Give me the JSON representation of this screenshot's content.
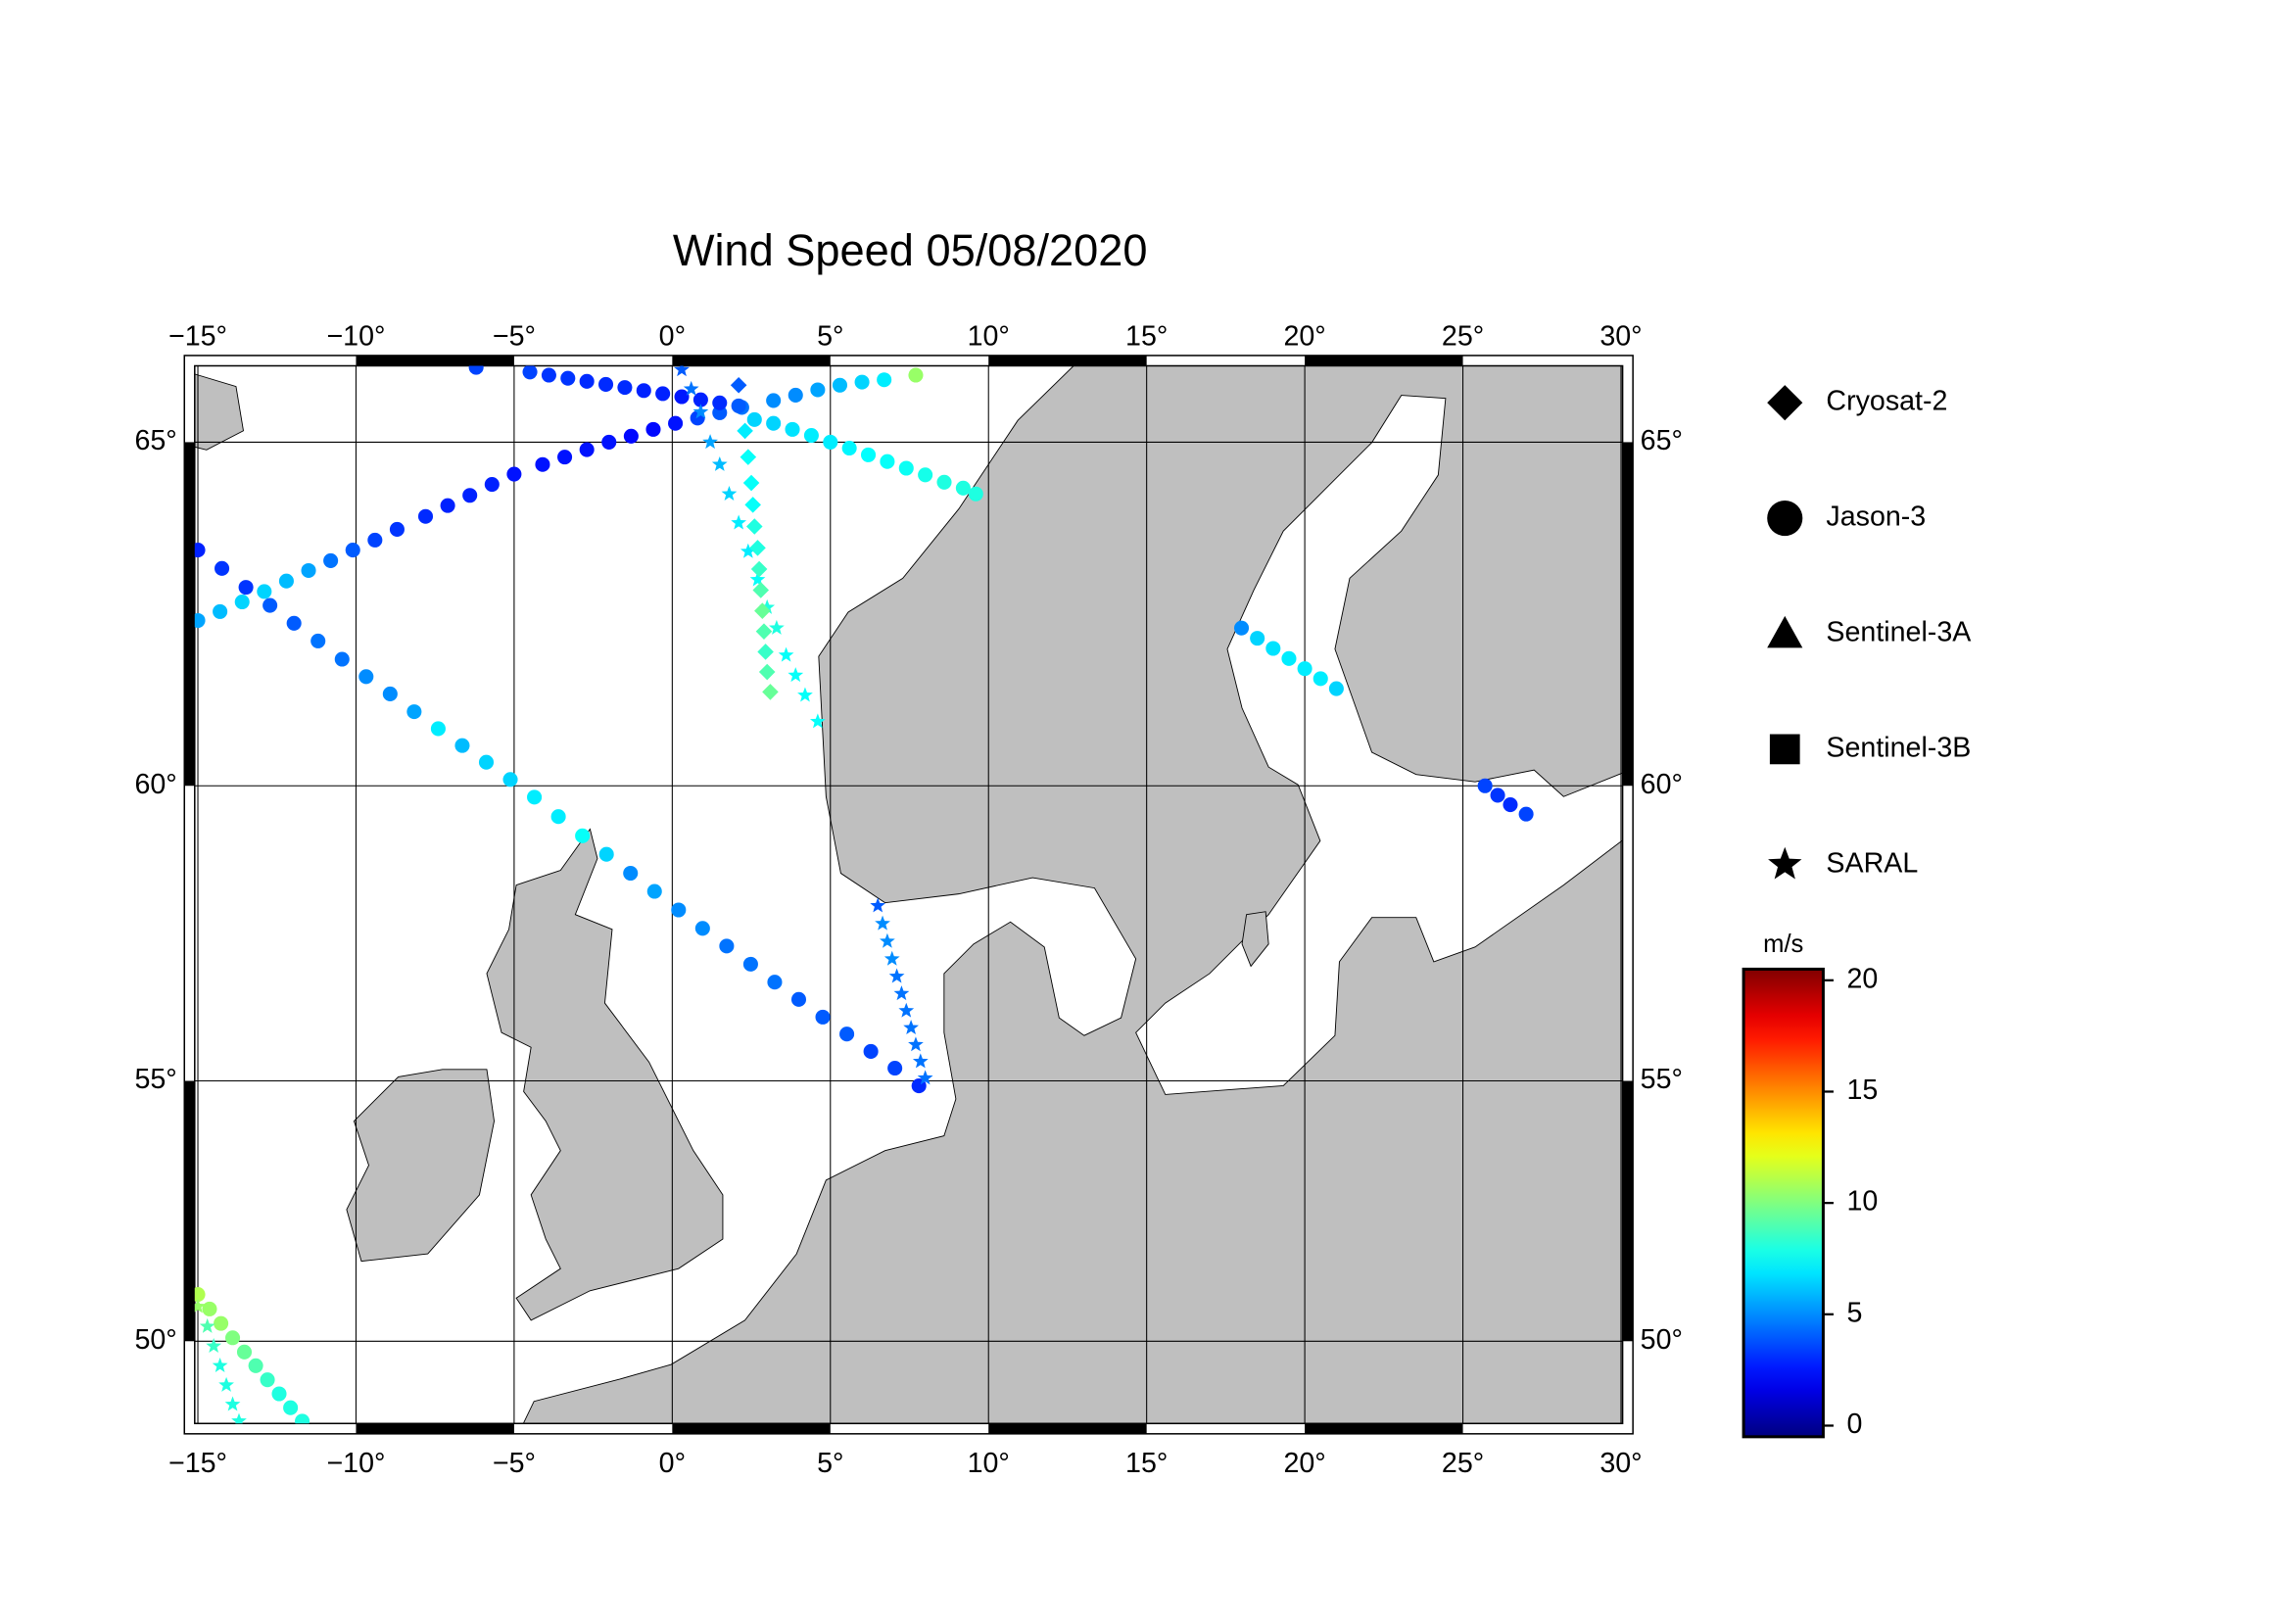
{
  "chart_data": {
    "type": "map",
    "title": "Wind Speed 05/08/2020",
    "projection": "mercator",
    "xlim": [
      -15.1,
      30.05
    ],
    "ylim": [
      48.3,
      66.0
    ],
    "xticks": [
      {
        "value": -15,
        "label": "−15°"
      },
      {
        "value": -10,
        "label": "−10°"
      },
      {
        "value": -5,
        "label": "−5°"
      },
      {
        "value": 0,
        "label": "0°"
      },
      {
        "value": 5,
        "label": "5°"
      },
      {
        "value": 10,
        "label": "10°"
      },
      {
        "value": 15,
        "label": "15°"
      },
      {
        "value": 20,
        "label": "20°"
      },
      {
        "value": 25,
        "label": "25°"
      },
      {
        "value": 30,
        "label": "30°"
      }
    ],
    "yticks": [
      {
        "value": 50,
        "label": "50°"
      },
      {
        "value": 55,
        "label": "55°"
      },
      {
        "value": 60,
        "label": "60°"
      },
      {
        "value": 65,
        "label": "65°"
      }
    ],
    "grid": true,
    "land_color": "#bfbfbf",
    "legend": [
      {
        "label": "Cryosat-2",
        "marker": "diamond"
      },
      {
        "label": "Jason-3",
        "marker": "circle"
      },
      {
        "label": "Sentinel-3A",
        "marker": "triangle"
      },
      {
        "label": "Sentinel-3B",
        "marker": "square"
      },
      {
        "label": "SARAL",
        "marker": "star"
      }
    ],
    "colorbar": {
      "label": "m/s",
      "colormap": "jet",
      "lim": [
        -0.5,
        20.5
      ],
      "ticks": [
        0,
        5,
        10,
        15,
        20
      ]
    },
    "tracks": [
      {
        "marker": "circle",
        "lon": [
          -15,
          -14.24,
          -13.48,
          -12.72,
          -11.96,
          -11.2,
          -10.44,
          -9.68,
          -8.92,
          -8.16,
          -7.4,
          -6.64,
          -5.88,
          -5.12,
          -4.36,
          -3.6,
          -2.84,
          -2.08,
          -1.32,
          -0.56,
          0.2,
          0.96,
          1.72,
          2.48,
          3.24,
          4,
          4.76,
          5.52,
          6.28,
          7.04,
          7.8
        ],
        "lat": [
          63.52,
          63.26,
          62.99,
          62.73,
          62.47,
          62.21,
          61.94,
          61.68,
          61.42,
          61.15,
          60.89,
          60.63,
          60.37,
          60.1,
          59.82,
          59.51,
          59.2,
          58.9,
          58.59,
          58.29,
          57.98,
          57.67,
          57.37,
          57.06,
          56.75,
          56.45,
          56.14,
          55.84,
          55.53,
          55.23,
          54.91
        ],
        "values": [
          2.8,
          3.2,
          3.2,
          4,
          4,
          4.5,
          4.5,
          5,
          5,
          5.5,
          7,
          6,
          6.5,
          6.5,
          7,
          7,
          7.5,
          6.5,
          5,
          5.5,
          5,
          5,
          4.5,
          4.5,
          4.5,
          4,
          4,
          4,
          3.5,
          3.5,
          3
        ]
      },
      {
        "marker": "circle",
        "lon": [
          -15,
          -14.3,
          -13.6,
          -12.9,
          -12.2,
          -11.5,
          -10.8,
          -10.1,
          -9.4,
          -8.7,
          -7.8,
          -7.1,
          -6.4,
          -5.7,
          -5,
          -4.1,
          -3.4,
          -2.7,
          -2,
          -1.3,
          -0.6,
          0.1,
          0.8,
          1.5,
          2.2,
          3.2,
          3.9,
          4.6,
          5.3,
          6,
          6.7,
          7.7
        ],
        "lat": [
          62.51,
          62.64,
          62.78,
          62.93,
          63.08,
          63.23,
          63.37,
          63.52,
          63.66,
          63.81,
          63.99,
          64.14,
          64.28,
          64.43,
          64.57,
          64.7,
          64.8,
          64.9,
          65,
          65.08,
          65.17,
          65.25,
          65.32,
          65.39,
          65.46,
          65.55,
          65.62,
          65.69,
          65.75,
          65.79,
          65.82,
          65.88
        ],
        "values": [
          5.5,
          6,
          6.5,
          6.5,
          6,
          5.5,
          4.5,
          4,
          3.5,
          3.2,
          3,
          2.8,
          2.8,
          2.8,
          2.5,
          2.5,
          2.5,
          2.5,
          2.5,
          2.3,
          2.3,
          2.5,
          3.5,
          4,
          4.5,
          5,
          5,
          5.5,
          6,
          6.5,
          7,
          10.5
        ]
      },
      {
        "marker": "circle",
        "lon": [
          -6.2,
          -4.5,
          -3.9,
          -3.3,
          -2.7,
          -2.1,
          -1.5,
          -0.9,
          -0.3,
          0.3,
          0.9,
          1.5,
          2.1,
          2.6,
          3.2,
          3.8,
          4.4,
          5,
          5.6,
          6.2,
          6.8,
          7.4,
          8,
          8.6,
          9.2,
          9.6
        ],
        "lat": [
          65.98,
          65.92,
          65.88,
          65.84,
          65.8,
          65.76,
          65.72,
          65.68,
          65.64,
          65.6,
          65.56,
          65.52,
          65.48,
          65.3,
          65.25,
          65.17,
          65.09,
          65,
          64.92,
          64.83,
          64.74,
          64.65,
          64.56,
          64.46,
          64.38,
          64.3
        ],
        "values": [
          3.5,
          3.5,
          3.2,
          3.2,
          3,
          3,
          3,
          2.8,
          2.8,
          2.6,
          2.8,
          3,
          4,
          6.5,
          6.5,
          6.8,
          7,
          7,
          7.2,
          7.4,
          7.5,
          7.6,
          7.8,
          8,
          8,
          8
        ]
      },
      {
        "marker": "circle",
        "lon": [
          18,
          18.5,
          19,
          19.5,
          20,
          20.5,
          21
        ],
        "lat": [
          62.4,
          62.25,
          62.1,
          61.95,
          61.8,
          61.65,
          61.5
        ],
        "values": [
          5,
          6.5,
          6.8,
          7,
          7,
          7,
          6.5
        ]
      },
      {
        "marker": "circle",
        "lon": [
          25.7,
          26.1,
          26.5,
          27
        ],
        "lat": [
          60,
          59.85,
          59.7,
          59.55
        ],
        "values": [
          3.5,
          3.2,
          3,
          3.5
        ]
      },
      {
        "marker": "circle",
        "lon": [
          -15,
          -14.63,
          -14.27,
          -13.9,
          -13.53,
          -13.17,
          -12.8,
          -12.43,
          -12.07,
          -11.7
        ],
        "lat": [
          50.94,
          50.65,
          50.36,
          50.07,
          49.78,
          49.5,
          49.21,
          48.92,
          48.63,
          48.35
        ],
        "values": [
          11,
          10.5,
          10.5,
          10,
          9.5,
          9,
          8.5,
          8,
          8,
          8
        ]
      },
      {
        "marker": "star",
        "lon": [
          0.3,
          0.6,
          0.9,
          1.2,
          1.5,
          1.8,
          2.1,
          2.4,
          2.7,
          3,
          3.3,
          3.6,
          3.9,
          4.2,
          4.6
        ],
        "lat": [
          65.95,
          65.7,
          65.4,
          65,
          64.7,
          64.3,
          63.9,
          63.5,
          63.1,
          62.7,
          62.4,
          62,
          61.7,
          61.4,
          61
        ],
        "values": [
          4,
          4.5,
          5,
          5.5,
          6,
          6.5,
          7,
          7,
          7.5,
          8,
          8,
          7.5,
          7.5,
          7.5,
          7.5
        ]
      },
      {
        "marker": "star",
        "lon": [
          6.5,
          6.65,
          6.8,
          6.95,
          7.1,
          7.25,
          7.4,
          7.55,
          7.7,
          7.85,
          8
        ],
        "lat": [
          58.05,
          57.75,
          57.45,
          57.15,
          56.85,
          56.55,
          56.25,
          55.95,
          55.65,
          55.35,
          55.05
        ],
        "values": [
          4,
          5,
          5,
          5,
          4.5,
          4.5,
          4.5,
          4.5,
          4.5,
          4.5,
          4.5
        ]
      },
      {
        "marker": "star",
        "lon": [
          -15,
          -14.7,
          -14.5,
          -14.3,
          -14.1,
          -13.9,
          -13.7
        ],
        "lat": [
          50.7,
          50.3,
          49.9,
          49.5,
          49.1,
          48.7,
          48.35
        ],
        "values": [
          10.5,
          9,
          8.5,
          8,
          8,
          8,
          8
        ]
      },
      {
        "marker": "diamond",
        "lon": [
          2.1,
          2.3,
          2.4,
          2.5,
          2.55,
          2.6,
          2.7,
          2.75,
          2.8,
          2.85,
          2.9,
          2.95,
          3,
          3.1
        ],
        "lat": [
          65.75,
          65.15,
          64.8,
          64.45,
          64.15,
          63.85,
          63.55,
          63.25,
          62.95,
          62.65,
          62.35,
          62.05,
          61.75,
          61.45
        ],
        "values": [
          4,
          7,
          7.5,
          7.5,
          7.5,
          8,
          8,
          8.5,
          9,
          9.5,
          9,
          8.5,
          9,
          9.5
        ]
      }
    ]
  }
}
